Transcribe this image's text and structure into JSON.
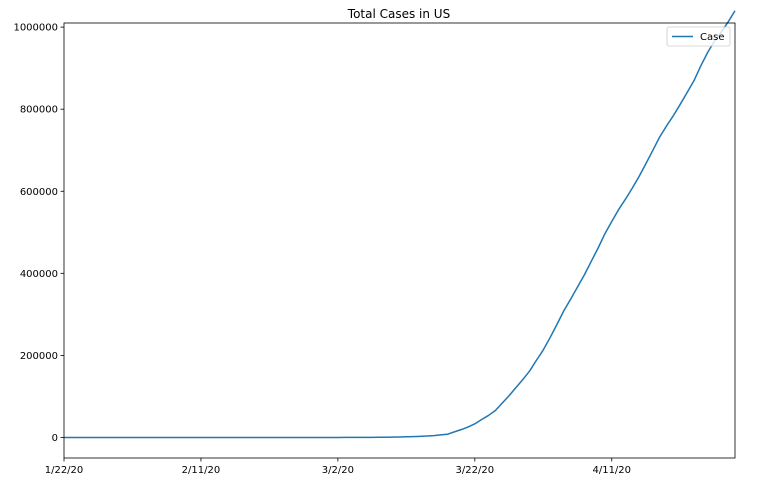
{
  "chart_data": {
    "type": "line",
    "title": "Total Cases in US",
    "xlabel": "",
    "ylabel": "",
    "x_tick_labels": [
      "1/22/20",
      "2/11/20",
      "3/2/20",
      "3/22/20",
      "4/11/20"
    ],
    "y_tick_labels": [
      "0",
      "200000",
      "400000",
      "600000",
      "800000",
      "1000000"
    ],
    "y_ticks": [
      0,
      200000,
      400000,
      600000,
      800000,
      1000000
    ],
    "ylim": [
      -50000,
      1010000
    ],
    "xlim": [
      "1/22/20",
      "4/29/20"
    ],
    "grid": false,
    "legend": {
      "position": "top-right",
      "entries": [
        "Case"
      ]
    },
    "series": [
      {
        "name": "Case",
        "color": "#1f77b4",
        "x": [
          "1/22/20",
          "1/23/20",
          "1/24/20",
          "1/25/20",
          "1/26/20",
          "1/27/20",
          "1/28/20",
          "1/29/20",
          "1/30/20",
          "1/31/20",
          "2/1/20",
          "2/2/20",
          "2/3/20",
          "2/4/20",
          "2/5/20",
          "2/6/20",
          "2/7/20",
          "2/8/20",
          "2/9/20",
          "2/10/20",
          "2/11/20",
          "2/12/20",
          "2/13/20",
          "2/14/20",
          "2/15/20",
          "2/16/20",
          "2/17/20",
          "2/18/20",
          "2/19/20",
          "2/20/20",
          "2/21/20",
          "2/22/20",
          "2/23/20",
          "2/24/20",
          "2/25/20",
          "2/26/20",
          "2/27/20",
          "2/28/20",
          "2/29/20",
          "3/1/20",
          "3/2/20",
          "3/3/20",
          "3/4/20",
          "3/5/20",
          "3/6/20",
          "3/7/20",
          "3/8/20",
          "3/9/20",
          "3/10/20",
          "3/11/20",
          "3/12/20",
          "3/13/20",
          "3/14/20",
          "3/15/20",
          "3/16/20",
          "3/17/20",
          "3/18/20",
          "3/19/20",
          "3/20/20",
          "3/21/20",
          "3/22/20",
          "3/23/20",
          "3/24/20",
          "3/25/20",
          "3/26/20",
          "3/27/20",
          "3/28/20",
          "3/29/20",
          "3/30/20",
          "3/31/20",
          "4/1/20",
          "4/2/20",
          "4/3/20",
          "4/4/20",
          "4/5/20",
          "4/6/20",
          "4/7/20",
          "4/8/20",
          "4/9/20",
          "4/10/20",
          "4/11/20",
          "4/12/20",
          "4/13/20",
          "4/14/20",
          "4/15/20",
          "4/16/20",
          "4/17/20",
          "4/18/20",
          "4/19/20",
          "4/20/20",
          "4/21/20",
          "4/22/20",
          "4/23/20",
          "4/24/20",
          "4/25/20",
          "4/26/20",
          "4/27/20",
          "4/28/20",
          "4/29/20"
        ],
        "values": [
          1,
          1,
          2,
          2,
          5,
          5,
          5,
          5,
          5,
          6,
          8,
          8,
          11,
          11,
          11,
          12,
          12,
          12,
          12,
          12,
          13,
          13,
          14,
          14,
          14,
          14,
          14,
          14,
          14,
          14,
          16,
          16,
          16,
          51,
          51,
          57,
          58,
          60,
          68,
          74,
          98,
          118,
          149,
          217,
          262,
          402,
          518,
          583,
          959,
          1281,
          1663,
          2179,
          2727,
          3499,
          4632,
          6421,
          7786,
          13680,
          19101,
          25493,
          33276,
          43847,
          53740,
          65778,
          83836,
          101657,
          121478,
          140886,
          161807,
          188172,
          213372,
          243453,
          275586,
          308850,
          337072,
          366667,
          396223,
          429052,
          461437,
          496535,
          526396,
          555313,
          580619,
          607670,
          636350,
          667592,
          699706,
          732197,
          759086,
          784326,
          811865,
          840351,
          869170,
          905358,
          938154,
          965785,
          988197,
          1012582,
          1039909
        ]
      }
    ]
  }
}
